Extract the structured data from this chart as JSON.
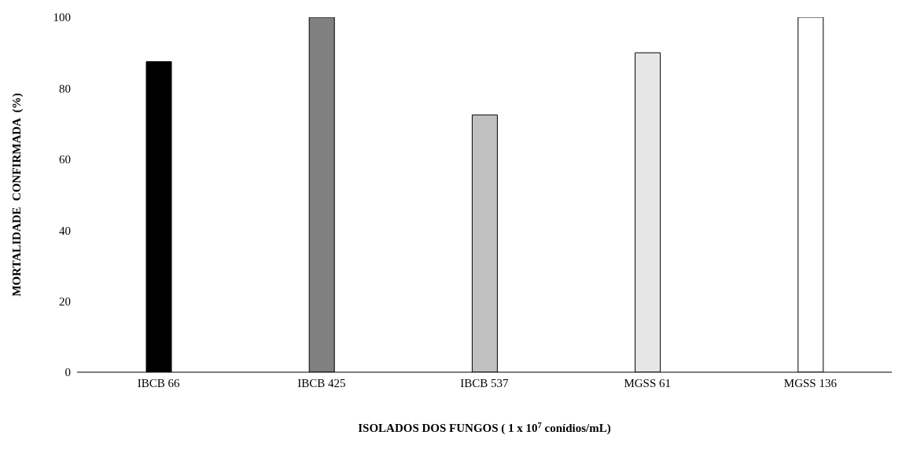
{
  "chart_data": {
    "type": "bar",
    "xlabel": "ISOLADOS DOS FUNGOS ( 1 x 10$^{7}$ conídios/mL)",
    "ylabel": "MORTALIDADE  CONFIRMADA  (%)",
    "categories": [
      "IBCB 66",
      "IBCB 425",
      "IBCB 537",
      "MGSS 61",
      "MGSS 136"
    ],
    "values": [
      87.5,
      100,
      72.5,
      90,
      100
    ],
    "colors": [
      "#000000",
      "#808080",
      "#c0c0c0",
      "#e6e6e6",
      "#ffffff"
    ],
    "ylim": [
      0,
      100
    ],
    "yticks": [
      0,
      20,
      40,
      60,
      80,
      100
    ],
    "grid": false,
    "legend": false
  }
}
